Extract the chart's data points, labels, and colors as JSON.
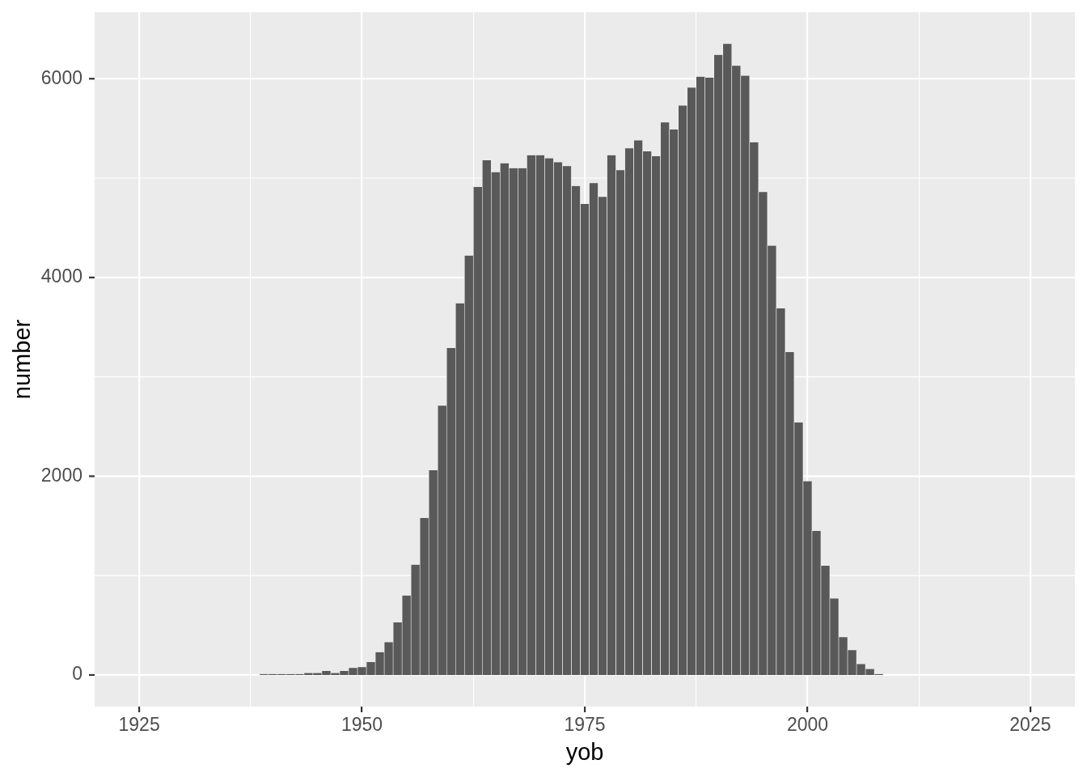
{
  "chart_data": {
    "type": "bar",
    "xlabel": "yob",
    "ylabel": "number",
    "x": [
      1939,
      1940,
      1941,
      1942,
      1943,
      1944,
      1945,
      1946,
      1947,
      1948,
      1949,
      1950,
      1951,
      1952,
      1953,
      1954,
      1955,
      1956,
      1957,
      1958,
      1959,
      1960,
      1961,
      1962,
      1963,
      1964,
      1965,
      1966,
      1967,
      1968,
      1969,
      1970,
      1971,
      1972,
      1973,
      1974,
      1975,
      1976,
      1977,
      1978,
      1979,
      1980,
      1981,
      1982,
      1983,
      1984,
      1985,
      1986,
      1987,
      1988,
      1989,
      1990,
      1991,
      1992,
      1993,
      1994,
      1995,
      1996,
      1997,
      1998,
      1999,
      2000,
      2001,
      2002,
      2003,
      2004,
      2005,
      2006,
      2007,
      2008
    ],
    "values": [
      10,
      10,
      10,
      10,
      10,
      20,
      20,
      40,
      20,
      40,
      70,
      80,
      130,
      230,
      330,
      530,
      800,
      1110,
      1580,
      2060,
      2710,
      3290,
      3740,
      4220,
      4910,
      5180,
      5060,
      5150,
      5100,
      5100,
      5230,
      5230,
      5200,
      5160,
      5120,
      4920,
      4740,
      4950,
      4810,
      5230,
      5080,
      5300,
      5380,
      5270,
      5220,
      5560,
      5490,
      5730,
      5910,
      6020,
      6010,
      6240,
      6350,
      6130,
      6030,
      5360,
      4860,
      4320,
      3690,
      3250,
      2540,
      1950,
      1450,
      1100,
      770,
      380,
      250,
      110,
      60,
      10
    ],
    "color": "#595959",
    "xlim": [
      1920,
      2030
    ],
    "ylim": [
      -318,
      6670
    ],
    "xticks": [
      1925,
      {
        "value": 1937.5,
        "label": null
      },
      1950,
      {
        "value": 1962.5,
        "label": null
      },
      1975,
      {
        "value": 1987.5,
        "label": null
      },
      2000,
      {
        "value": 2012.5,
        "label": null
      },
      2025
    ],
    "yticks": [
      0,
      {
        "value": 1000,
        "label": null
      },
      2000,
      {
        "value": 3000,
        "label": null
      },
      4000,
      {
        "value": 5000,
        "label": null
      },
      6000
    ],
    "grid": true
  }
}
